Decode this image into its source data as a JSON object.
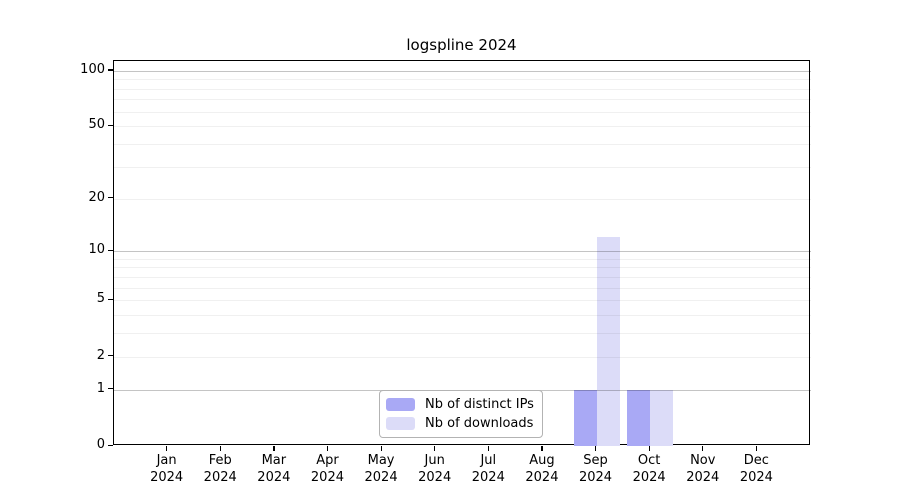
{
  "chart_data": {
    "type": "bar",
    "title": "logspline 2024",
    "categories": [
      "Jan 2024",
      "Feb 2024",
      "Mar 2024",
      "Apr 2024",
      "May 2024",
      "Jun 2024",
      "Jul 2024",
      "Aug 2024",
      "Sep 2024",
      "Oct 2024",
      "Nov 2024",
      "Dec 2024"
    ],
    "series": [
      {
        "name": "Nb of distinct IPs",
        "color": "#a9a9f5",
        "values": [
          0,
          0,
          0,
          0,
          0,
          0,
          0,
          0,
          1,
          1,
          0,
          0
        ]
      },
      {
        "name": "Nb of downloads",
        "color": "#dcdcf8",
        "values": [
          0,
          0,
          0,
          0,
          0,
          0,
          0,
          0,
          12,
          1,
          0,
          0
        ]
      }
    ],
    "xlabel": "",
    "ylabel": "",
    "y_scale": "log1p",
    "ylim": [
      0,
      113
    ],
    "y_ticks": [
      0,
      1,
      2,
      5,
      10,
      20,
      50,
      100
    ],
    "y_major_gridlines": [
      1,
      10,
      100
    ],
    "y_minor_gridlines": [
      2,
      3,
      4,
      5,
      6,
      7,
      8,
      9,
      20,
      30,
      40,
      50,
      60,
      70,
      80,
      90
    ],
    "grid": true,
    "legend_position": "bottom-center",
    "colors": {
      "distinct_ips_bar": "#a9a9f5",
      "downloads_bar": "#dcdcf8",
      "major_gridline": "rgba(0,0,0,0.23)",
      "minor_gridline": "rgba(0,0,0,0.06)",
      "axis": "#000000",
      "legend_border": "#b3b3b3",
      "background": "#ffffff"
    }
  }
}
